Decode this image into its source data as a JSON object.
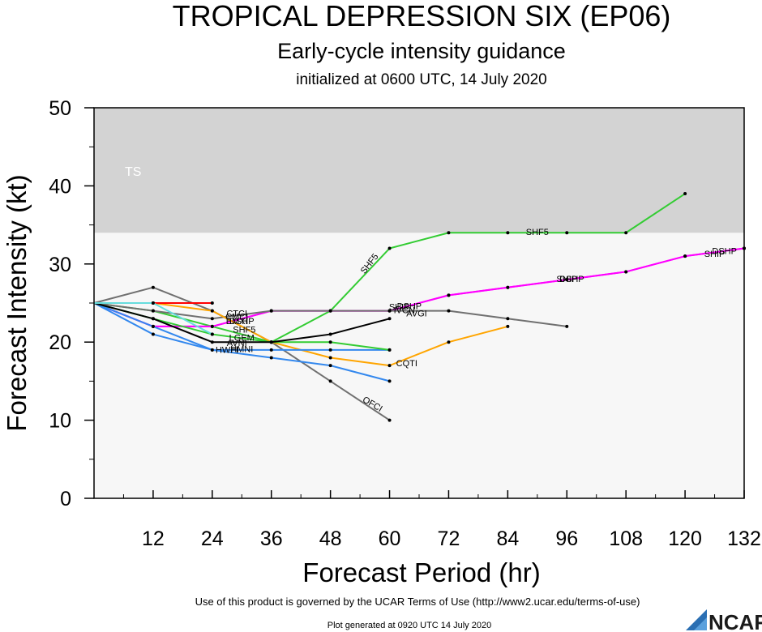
{
  "chart_data": {
    "type": "line",
    "title": "TROPICAL DEPRESSION SIX (EP06)",
    "subtitle": "Early-cycle intensity guidance",
    "subtitle2": "initialized at 0600 UTC, 14 July 2020",
    "xlabel": "Forecast Period (hr)",
    "ylabel": "Forecast Intensity (kt)",
    "xlim": [
      0,
      132
    ],
    "ylim": [
      0,
      50
    ],
    "xticks": [
      "12",
      "24",
      "36",
      "48",
      "60",
      "72",
      "84",
      "96",
      "108",
      "120",
      "132"
    ],
    "yticks": [
      "0",
      "10",
      "20",
      "30",
      "40",
      "50"
    ],
    "grid": false,
    "bands": [
      {
        "label": "TS",
        "y_from": 34,
        "y_to": 50,
        "color": "#d3d3d3"
      }
    ],
    "series": [
      {
        "name": "SHF5",
        "color": "#33cc33",
        "x": [
          0,
          12,
          24,
          36,
          48,
          60,
          72,
          84,
          96,
          108,
          120
        ],
        "y": [
          25,
          24,
          22,
          20,
          24,
          32,
          34,
          34,
          34,
          34,
          39
        ]
      },
      {
        "name": "DSHP",
        "color": "#ff00ff",
        "x": [
          0,
          12,
          24,
          36,
          48,
          60,
          72,
          84,
          96,
          108,
          120,
          132
        ],
        "y": [
          25,
          22,
          22,
          24,
          24,
          24,
          26,
          27,
          28,
          29,
          31,
          32
        ]
      },
      {
        "name": "SHIP",
        "color": "#ff00ff",
        "x": [
          0,
          12,
          24,
          36,
          48,
          60,
          72,
          84,
          96,
          108,
          120,
          132
        ],
        "y": [
          25,
          22,
          22,
          24,
          24,
          24,
          26,
          27,
          28,
          29,
          31,
          32
        ]
      },
      {
        "name": "IVCN",
        "color": "#707070",
        "x": [
          0,
          12,
          24,
          36,
          48,
          60,
          72,
          84,
          96
        ],
        "y": [
          25,
          24,
          23,
          24,
          24,
          24,
          24,
          23,
          22
        ]
      },
      {
        "name": "OFCI",
        "color": "#707070",
        "x": [
          0,
          12,
          24,
          36,
          48,
          60
        ],
        "y": [
          25,
          27,
          24,
          20,
          15,
          10
        ]
      },
      {
        "name": "CQTI",
        "color": "#ffa500",
        "x": [
          0,
          12,
          24,
          36,
          48,
          60,
          72,
          84
        ],
        "y": [
          25,
          25,
          24,
          20,
          18,
          17,
          20,
          22
        ]
      },
      {
        "name": "HWFI",
        "color": "#3388ee",
        "x": [
          0,
          12,
          24,
          36,
          48,
          60
        ],
        "y": [
          25,
          22,
          19,
          18,
          17,
          15
        ]
      },
      {
        "name": "HMNI",
        "color": "#3388ee",
        "x": [
          0,
          12,
          24,
          36,
          48,
          60
        ],
        "y": [
          25,
          21,
          19,
          19,
          19,
          19
        ]
      },
      {
        "name": "LGEM",
        "color": "#33cc33",
        "x": [
          0,
          12,
          24,
          36,
          48,
          60
        ],
        "y": [
          25,
          23,
          21,
          20,
          20,
          19
        ]
      },
      {
        "name": "AVNI",
        "color": "#000000",
        "x": [
          0,
          12,
          24,
          36,
          48,
          60
        ],
        "y": [
          25,
          23,
          20,
          20,
          21,
          23
        ]
      },
      {
        "name": "CTCI",
        "color": "#ff0000",
        "x": [
          0,
          12,
          24
        ],
        "y": [
          25,
          25,
          25
        ]
      },
      {
        "name": "EMXI",
        "color": "#66dddd",
        "x": [
          0,
          12,
          24
        ],
        "y": [
          25,
          25,
          21
        ]
      }
    ],
    "series_labels": [
      {
        "text": "SHF5",
        "x": 56,
        "y": 30,
        "angle": -52
      },
      {
        "text": "SHF5",
        "x": 90,
        "y": 34,
        "angle": 0
      },
      {
        "text": "DSHP",
        "x": 97,
        "y": 28,
        "angle": 0
      },
      {
        "text": "SHIP",
        "x": 96,
        "y": 28,
        "angle": 0
      },
      {
        "text": "SHIP",
        "x": 126,
        "y": 31.2,
        "angle": 0
      },
      {
        "text": "DSHP",
        "x": 128,
        "y": 31.6,
        "angle": 0
      },
      {
        "text": "SHIP",
        "x": 62,
        "y": 24.4,
        "angle": 0
      },
      {
        "text": "DSHP",
        "x": 64,
        "y": 24.5,
        "angle": 0
      },
      {
        "text": "IVCN",
        "x": 63,
        "y": 24,
        "angle": 0
      },
      {
        "text": "AVGI",
        "x": 65.5,
        "y": 23.6,
        "angle": 0
      },
      {
        "text": "OFCI",
        "x": 56.5,
        "y": 12,
        "angle": 30
      },
      {
        "text": "CQTI",
        "x": 63.5,
        "y": 17.2,
        "angle": 0
      },
      {
        "text": "HWFI",
        "x": 27,
        "y": 18.9,
        "angle": 0
      },
      {
        "text": "HMNI",
        "x": 30,
        "y": 19,
        "angle": 0
      },
      {
        "text": "LGEM",
        "x": 30,
        "y": 20.5,
        "angle": 0
      },
      {
        "text": "AVNI",
        "x": 29,
        "y": 19.8,
        "angle": 0
      },
      {
        "text": "CTCI",
        "x": 29,
        "y": 23.6,
        "angle": 0
      },
      {
        "text": "EMXI",
        "x": 29,
        "y": 22.6,
        "angle": 0
      },
      {
        "text": "CMCI",
        "x": 29,
        "y": 23.2,
        "angle": 0
      },
      {
        "text": "SHF5",
        "x": 30.5,
        "y": 21.5,
        "angle": 0
      },
      {
        "text": "DSHP",
        "x": 30,
        "y": 22.6,
        "angle": 0
      }
    ]
  },
  "footer": {
    "terms": "Use of this product is governed by the UCAR Terms of Use (http://www2.ucar.edu/terms-of-use)",
    "generated": "Plot generated at 0920 UTC   14 July 2020",
    "logo_text": "NCAR"
  }
}
